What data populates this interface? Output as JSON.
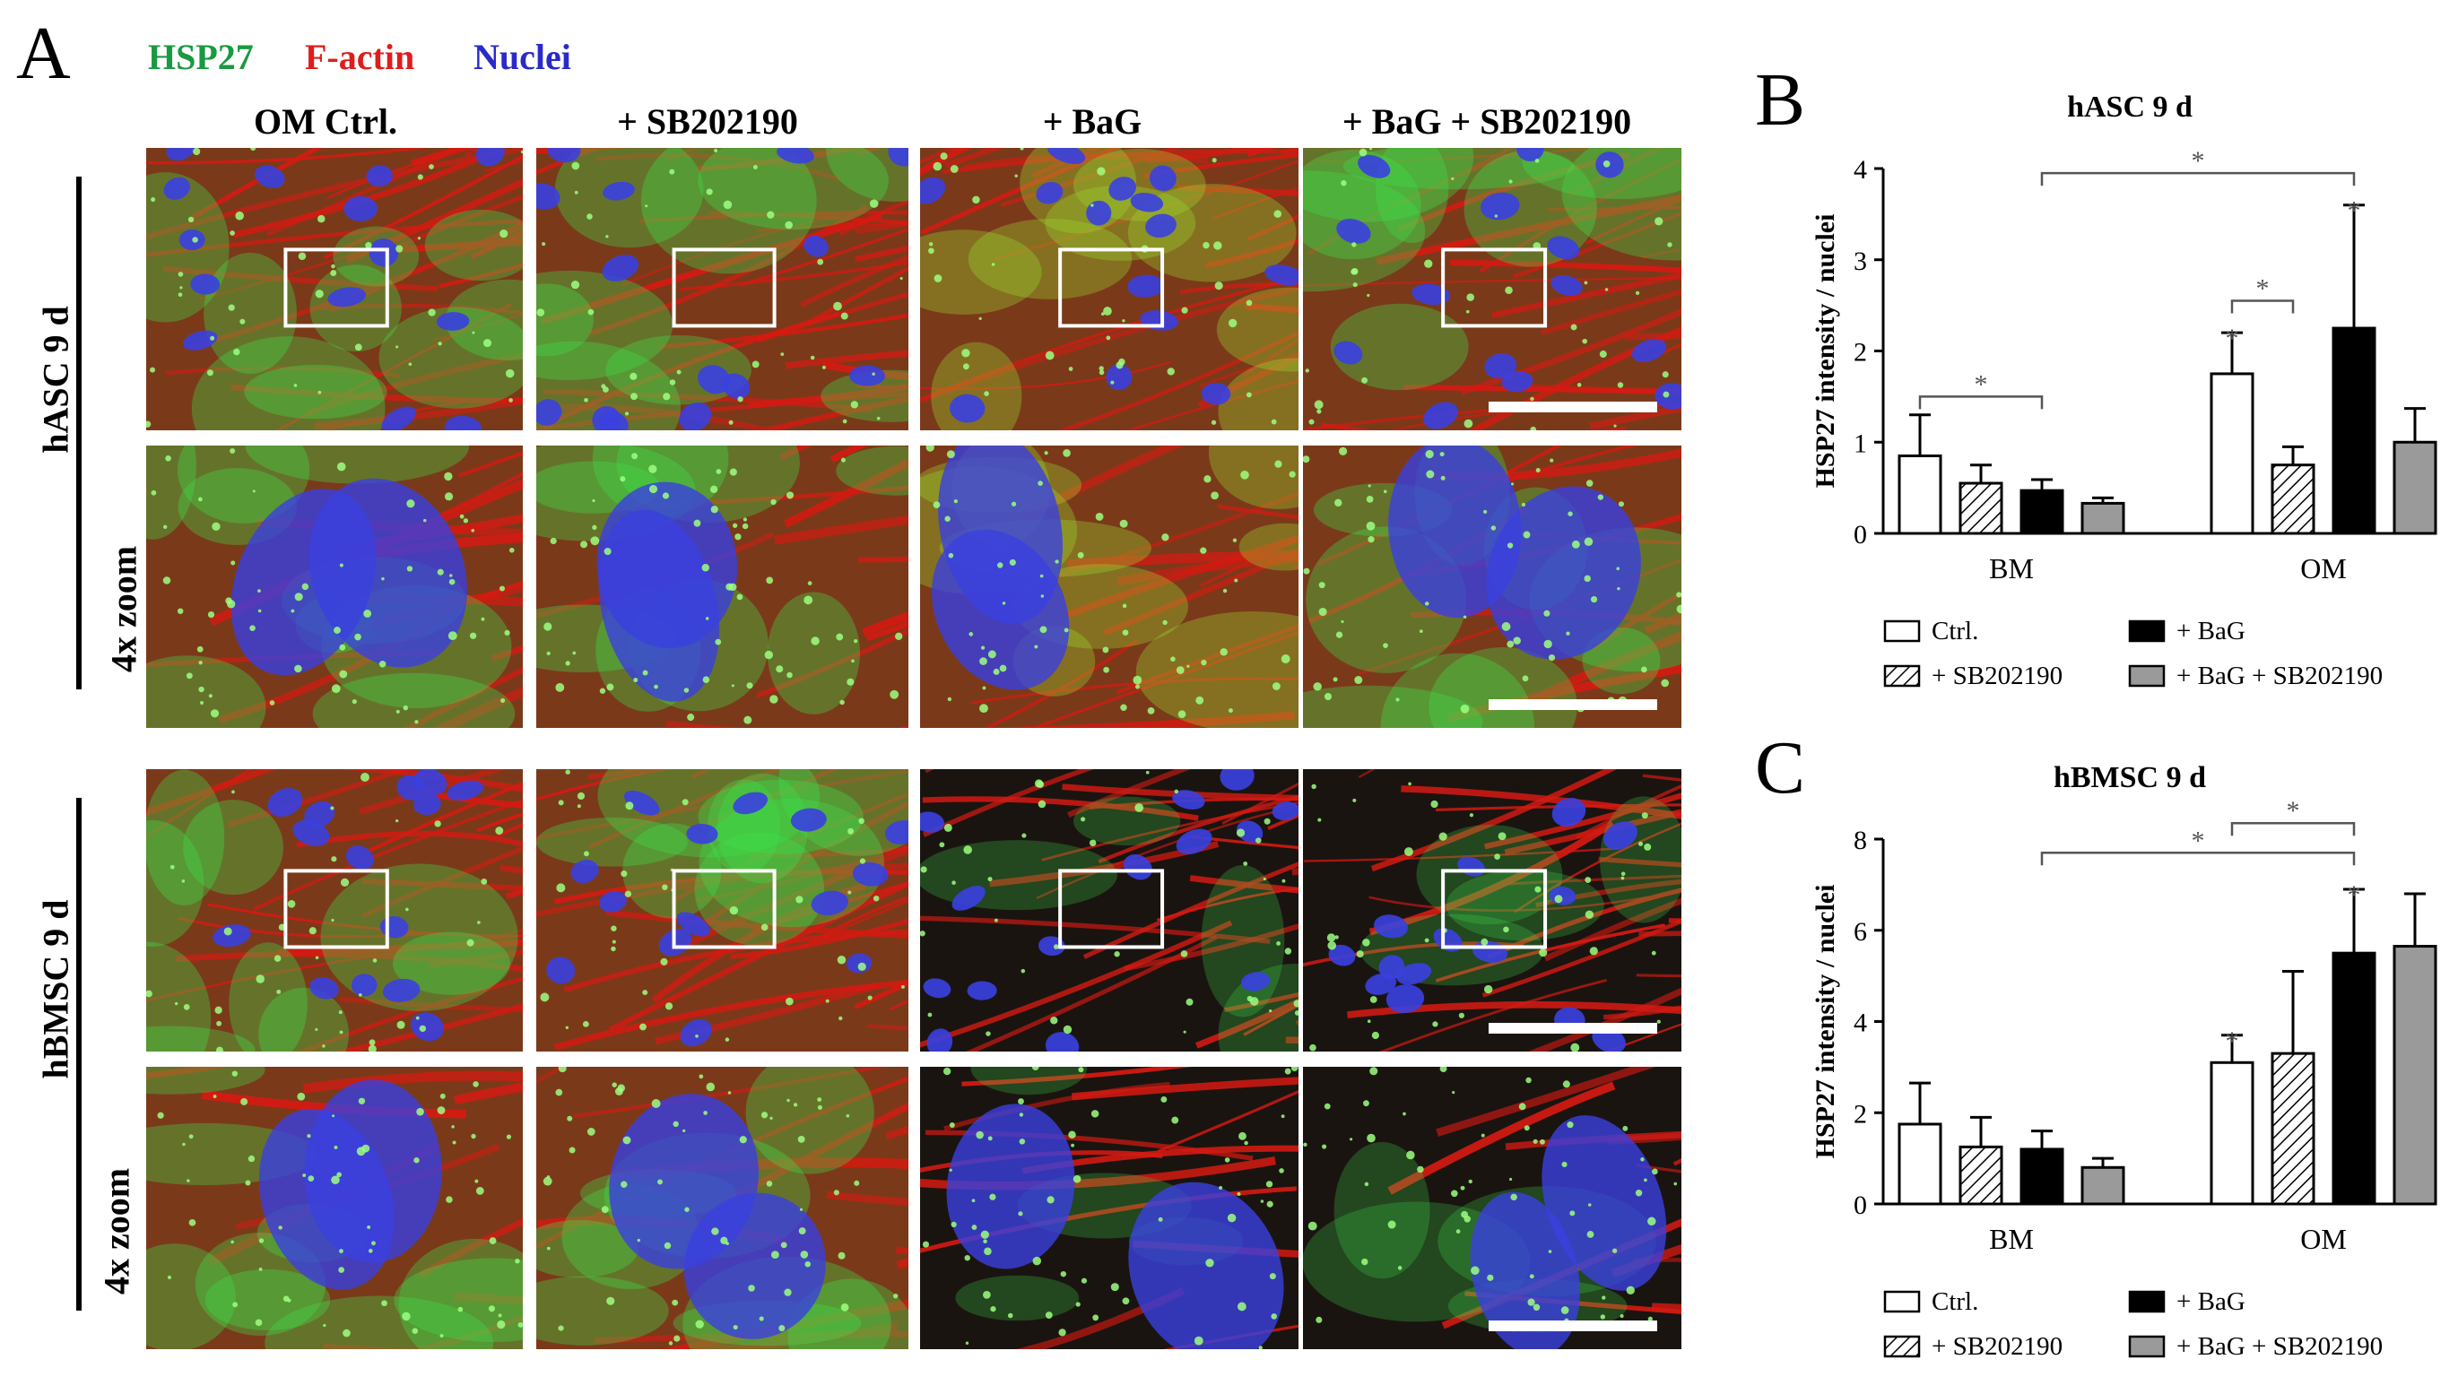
{
  "panel_a": {
    "letter": "A",
    "stains": [
      {
        "label": "HSP27",
        "color": "#1a9a40"
      },
      {
        "label": "F-actin",
        "color": "#e01c1c"
      },
      {
        "label": "Nuclei",
        "color": "#2a2ac8"
      }
    ],
    "columns": [
      "OM Ctrl.",
      "+ SB202190",
      "+ BaG",
      "+ BaG + SB202190"
    ],
    "rows": [
      {
        "group": "hASC 9 d",
        "zoom_label": "4x zoom"
      },
      {
        "group": "hBMSC 9 d",
        "zoom_label": "4x zoom"
      }
    ],
    "colors": {
      "actin": "#d41a12",
      "hsp27": "#3ee04a",
      "nuclei": "#3a40e0",
      "bg_dark": "#1a1410"
    }
  },
  "chart_data": [
    {
      "panel": "B",
      "type": "bar",
      "title": "hASC 9 d",
      "xlabel": "",
      "ylabel": "HSP27 intensity / nuclei",
      "ylim": [
        0,
        4
      ],
      "yticks": [
        "0",
        "1",
        "2",
        "3",
        "4"
      ],
      "categories": [
        "BM",
        "OM"
      ],
      "series": [
        {
          "name": "Ctrl.",
          "values": [
            0.85,
            1.75
          ],
          "errors": [
            0.45,
            0.45
          ],
          "style": "open"
        },
        {
          "name": "+ SB202190",
          "values": [
            0.55,
            0.75
          ],
          "errors": [
            0.2,
            0.2
          ],
          "style": "hatched"
        },
        {
          "name": "+ BaG",
          "values": [
            0.47,
            2.25
          ],
          "errors": [
            0.12,
            1.35
          ],
          "style": "black"
        },
        {
          "name": "+ BaG + SB202190",
          "values": [
            0.33,
            1.0
          ],
          "errors": [
            0.06,
            0.37
          ],
          "style": "gray"
        }
      ],
      "significance_marks": [
        {
          "symbol": "*",
          "kind": "bracket",
          "from": [
            0,
            0
          ],
          "to": [
            0,
            2
          ],
          "level": 1.5
        },
        {
          "symbol": "*",
          "kind": "bracket",
          "from": [
            1,
            0
          ],
          "to": [
            1,
            1
          ],
          "level": 2.55
        },
        {
          "symbol": "*",
          "kind": "bracket",
          "from": [
            0,
            2
          ],
          "to": [
            1,
            2
          ],
          "level": 3.95
        },
        {
          "symbol": "*",
          "kind": "above",
          "at": [
            1,
            0
          ]
        },
        {
          "symbol": "*",
          "kind": "above",
          "at": [
            1,
            2
          ]
        }
      ],
      "legend_position": "bottom"
    },
    {
      "panel": "C",
      "type": "bar",
      "title": "hBMSC 9 d",
      "xlabel": "",
      "ylabel": "HSP27 intensity / nuclei",
      "ylim": [
        0,
        8
      ],
      "yticks": [
        "0",
        "2",
        "4",
        "6",
        "8"
      ],
      "categories": [
        "BM",
        "OM"
      ],
      "series": [
        {
          "name": "Ctrl.",
          "values": [
            1.75,
            3.1
          ],
          "errors": [
            0.9,
            0.6
          ],
          "style": "open"
        },
        {
          "name": "+ SB202190",
          "values": [
            1.25,
            3.3
          ],
          "errors": [
            0.65,
            1.8
          ],
          "style": "hatched"
        },
        {
          "name": "+ BaG",
          "values": [
            1.2,
            5.5
          ],
          "errors": [
            0.4,
            1.4
          ],
          "style": "black"
        },
        {
          "name": "+ BaG + SB202190",
          "values": [
            0.8,
            5.65
          ],
          "errors": [
            0.2,
            1.15
          ],
          "style": "gray"
        }
      ],
      "significance_marks": [
        {
          "symbol": "*",
          "kind": "bracket",
          "from": [
            0,
            2
          ],
          "to": [
            1,
            2
          ],
          "level": 7.7
        },
        {
          "symbol": "*",
          "kind": "bracket",
          "from": [
            1,
            0
          ],
          "to": [
            1,
            2
          ],
          "level": 8.35
        },
        {
          "symbol": "*",
          "kind": "above",
          "at": [
            1,
            0
          ]
        },
        {
          "symbol": "*",
          "kind": "above",
          "at": [
            1,
            2
          ]
        }
      ],
      "legend_position": "bottom"
    }
  ]
}
